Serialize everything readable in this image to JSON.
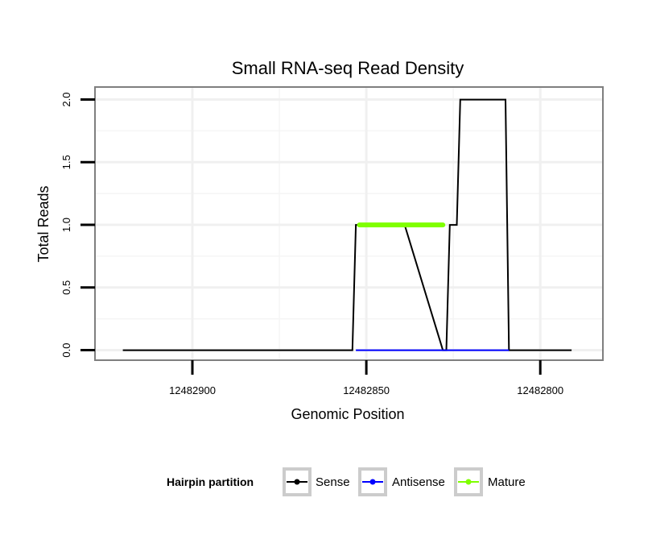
{
  "chart_data": {
    "type": "line",
    "title": "Small RNA-seq Read Density",
    "xlabel": "Genomic Position",
    "ylabel": "Total Reads",
    "xlim": [
      12482928,
      12482782
    ],
    "x_reversed": true,
    "ylim": [
      -0.08,
      2.1
    ],
    "x_ticks": [
      12482900,
      12482850,
      12482800
    ],
    "x_tick_labels": [
      "12482900",
      "12482850",
      "12482800"
    ],
    "y_ticks": [
      0,
      0.5,
      1,
      1.5,
      2
    ],
    "y_tick_labels": [
      "0.0",
      "0.5",
      "1.0",
      "1.5",
      "2.0"
    ],
    "grid": true,
    "legend": {
      "title": "Hairpin partition",
      "position": "bottom",
      "entries": [
        "Sense",
        "Antisense",
        "Mature"
      ]
    },
    "series": [
      {
        "name": "Sense",
        "color": "#000000",
        "x": [
          12482920,
          12482854,
          12482853,
          12482839,
          12482828,
          12482827,
          12482826,
          12482824,
          12482823,
          12482810,
          12482809,
          12482791
        ],
        "y": [
          0,
          0,
          1,
          1,
          0,
          0,
          1,
          1,
          2,
          2,
          0,
          0
        ]
      },
      {
        "name": "Antisense",
        "color": "#0000ff",
        "x": [
          12482853,
          12482809
        ],
        "y": [
          0,
          0
        ]
      },
      {
        "name": "Mature",
        "color": "#7fff00",
        "x": [
          12482852,
          12482828
        ],
        "y": [
          1,
          1
        ]
      }
    ]
  }
}
